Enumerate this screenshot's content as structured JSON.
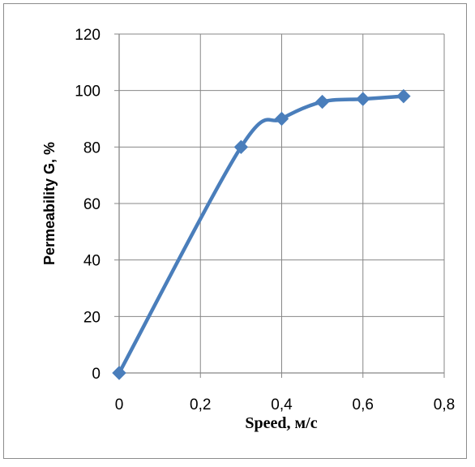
{
  "chart_data": {
    "type": "line",
    "xlabel": "Speed, м/с",
    "ylabel": "Permeability  G, %",
    "xlim": [
      0,
      0.8
    ],
    "ylim": [
      0,
      120
    ],
    "x_ticks": [
      "0",
      "0,2",
      "0,4",
      "0,6",
      "0,8"
    ],
    "y_ticks": [
      "0",
      "20",
      "40",
      "60",
      "80",
      "100",
      "120"
    ],
    "grid": true,
    "smooth": true,
    "marker": "diamond",
    "series": [
      {
        "color": "#4a7ebb",
        "x": [
          0,
          0.3,
          0.4,
          0.5,
          0.6,
          0.7
        ],
        "y": [
          0,
          80,
          90,
          96,
          97,
          98
        ]
      }
    ]
  }
}
